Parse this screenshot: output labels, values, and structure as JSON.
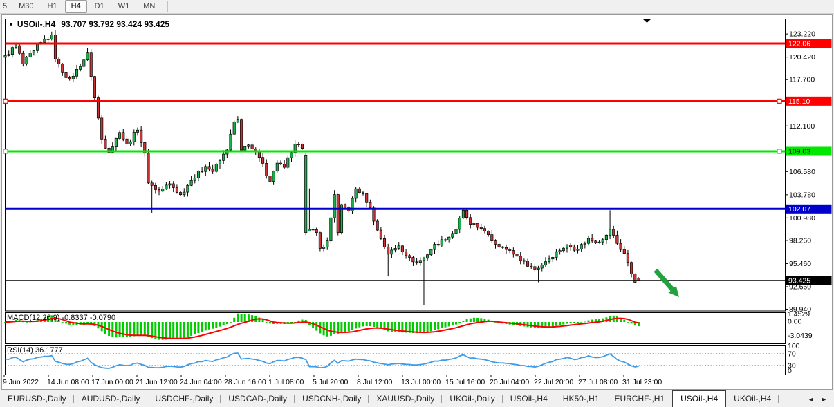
{
  "toolbar": {
    "timeframes": [
      "5",
      "M30",
      "H1",
      "H4",
      "D1",
      "W1",
      "MN"
    ],
    "active_timeframe": "H4"
  },
  "icons": {
    "symbol_dropdown": "▼",
    "tab_scroll_left": "◄",
    "tab_scroll_right": "►"
  },
  "chart": {
    "symbol": "USOil-,H4",
    "title_values": "93.707 93.792 93.424 93.425",
    "ohlc": {
      "open": "93.707",
      "high": "93.792",
      "low": "93.424",
      "close": "93.425"
    }
  },
  "price_axis": {
    "ticks": [
      "123.220",
      "120.420",
      "117.700",
      "112.100",
      "106.580",
      "103.780",
      "100.980",
      "98.260",
      "95.460",
      "92.660",
      "89.940"
    ],
    "tick_values": [
      123.22,
      120.42,
      117.7,
      112.1,
      106.58,
      103.78,
      100.98,
      98.26,
      95.46,
      92.66,
      89.94
    ],
    "current_price_label": "93.425"
  },
  "hlines": [
    {
      "price": 122.06,
      "label": "122.06",
      "color": "#FF0000",
      "text_color": "#FFFFFF",
      "width": 3,
      "handles": false
    },
    {
      "price": 115.1,
      "label": "115.10",
      "color": "#FF0000",
      "text_color": "#FFFFFF",
      "width": 3,
      "handles": true
    },
    {
      "price": 109.03,
      "label": "109.03",
      "color": "#00E800",
      "text_color": "#000000",
      "width": 3,
      "handles": true
    },
    {
      "price": 102.07,
      "label": "102.07",
      "color": "#0000CC",
      "text_color": "#FFFFFF",
      "width": 3,
      "handles": false
    },
    {
      "price": 93.425,
      "label": "93.425",
      "color": "#000000",
      "text_color": "#FFFFFF",
      "width": 1,
      "handles": false,
      "is_current": true
    }
  ],
  "indicators": {
    "macd": {
      "label": "MACD(12,26,9) -0.8337 -0.0790",
      "params": [
        12,
        26,
        9
      ],
      "value_main": "-0.8337",
      "value_signal": "-0.0790",
      "scale_max": "1.4529",
      "scale_zero": "0.00",
      "scale_min": "-3.0439",
      "scale_max_value": 1.4529,
      "scale_min_value": -3.0439,
      "histogram_color": "#00CC00",
      "signal_color": "#FF0000"
    },
    "rsi": {
      "label": "RSI(14) 36.1777",
      "period": 14,
      "value": "36.1777",
      "scale_labels": [
        "100",
        "70",
        "30",
        "0"
      ],
      "scale_values": [
        100,
        70,
        30,
        0
      ],
      "level_lines": [
        70,
        30
      ],
      "line_color": "#3E9CE8"
    }
  },
  "time_axis": {
    "labels": [
      "9 Jun 2022",
      "14 Jun 08:00",
      "17 Jun 00:00",
      "21 Jun 12:00",
      "24 Jun 04:00",
      "28 Jun 16:00",
      "1 Jul 08:00",
      "5 Jul 20:00",
      "8 Jul 12:00",
      "13 Jul 00:00",
      "15 Jul 16:00",
      "20 Jul 04:00",
      "22 Jul 20:00",
      "27 Jul 08:00",
      "31 Jul 23:00"
    ]
  },
  "tabs": {
    "items": [
      "EURUSD-,Daily",
      "AUDUSD-,Daily",
      "USDCHF-,Daily",
      "USDCAD-,Daily",
      "USDCNH-,Daily",
      "XAUUSD-,Daily",
      "UKOil-,Daily",
      "USOil-,H4",
      "HK50-,H1",
      "EURCHF-,H1",
      "USOil-,H4",
      "UKOil-,H4"
    ],
    "active_index": 10
  },
  "arrow": {
    "from": [
      948,
      391
    ],
    "to": [
      982,
      430
    ],
    "color": "#22A23E"
  },
  "chart_data": {
    "type": "candlestick",
    "symbol": "USOil-,H4",
    "timeframe": "H4",
    "bars": 178,
    "visible_high": 123.5,
    "visible_low": 89.9,
    "last_ohlc": {
      "open": 93.707,
      "high": 93.792,
      "low": 93.424,
      "close": 93.425
    },
    "bull_color": "#1CAF4A",
    "bear_color": "#C93535",
    "outline_color": "#000000",
    "anchors": [
      [
        0,
        120.6
      ],
      [
        3,
        121.8
      ],
      [
        5,
        119.6
      ],
      [
        8,
        121.2
      ],
      [
        10,
        122.2
      ],
      [
        13,
        123.1
      ],
      [
        14,
        120.2
      ],
      [
        16,
        118.6
      ],
      [
        18,
        117.8
      ],
      [
        21,
        119.3
      ],
      [
        23,
        121.0
      ],
      [
        25,
        115.5
      ],
      [
        27,
        110.5
      ],
      [
        29,
        108.9
      ],
      [
        32,
        111.3
      ],
      [
        34,
        109.9
      ],
      [
        37,
        111.6
      ],
      [
        39,
        108.8
      ],
      [
        40,
        105.2
      ],
      [
        43,
        104.2
      ],
      [
        46,
        105.1
      ],
      [
        49,
        103.8
      ],
      [
        52,
        105.5
      ],
      [
        56,
        107.2
      ],
      [
        58,
        106.6
      ],
      [
        62,
        109.2
      ],
      [
        64,
        112.6
      ],
      [
        65,
        112.9
      ],
      [
        66,
        109.2
      ],
      [
        68,
        109.8
      ],
      [
        71,
        108.3
      ],
      [
        74,
        105.4
      ],
      [
        76,
        107.6
      ],
      [
        78,
        107.1
      ],
      [
        81,
        109.9
      ],
      [
        83,
        109.4
      ],
      [
        85,
        99.6
      ],
      [
        87,
        99.2
      ],
      [
        88,
        97.3
      ],
      [
        90,
        98.2
      ],
      [
        92,
        103.8
      ],
      [
        93,
        99.2
      ],
      [
        94,
        102.6
      ],
      [
        96,
        101.8
      ],
      [
        98,
        104.5
      ],
      [
        100,
        103.9
      ],
      [
        102,
        102.2
      ],
      [
        104,
        99.5
      ],
      [
        107,
        96.6
      ],
      [
        110,
        97.6
      ],
      [
        113,
        96.2
      ],
      [
        115,
        95.6
      ],
      [
        117,
        96.1
      ],
      [
        120,
        97.8
      ],
      [
        123,
        98.3
      ],
      [
        126,
        99.6
      ],
      [
        128,
        101.9
      ],
      [
        130,
        100.2
      ],
      [
        133,
        99.7
      ],
      [
        136,
        98.2
      ],
      [
        139,
        97.4
      ],
      [
        142,
        96.6
      ],
      [
        145,
        95.8
      ],
      [
        148,
        94.7
      ],
      [
        151,
        95.7
      ],
      [
        154,
        96.9
      ],
      [
        157,
        97.7
      ],
      [
        160,
        97.2
      ],
      [
        163,
        98.5
      ],
      [
        165,
        98.0
      ],
      [
        168,
        98.9
      ],
      [
        169,
        99.6
      ],
      [
        171,
        97.9
      ],
      [
        173,
        96.7
      ],
      [
        175,
        94.2
      ],
      [
        176,
        93.2
      ],
      [
        177,
        93.425
      ]
    ],
    "special_bars": {
      "13": {
        "high": 123.5
      },
      "41": {
        "low": 101.6
      },
      "84": {
        "open": 99.2,
        "close": 108.5,
        "high": 108.8,
        "low": 98.9
      },
      "85": {
        "open": 99.4
      },
      "107": {
        "low": 93.9
      },
      "117": {
        "low": 90.4
      },
      "149": {
        "low": 93.2
      },
      "169": {
        "high": 101.9
      },
      "177": {
        "open": 93.707,
        "high": 93.792,
        "low": 93.424,
        "close": 93.425
      }
    }
  }
}
